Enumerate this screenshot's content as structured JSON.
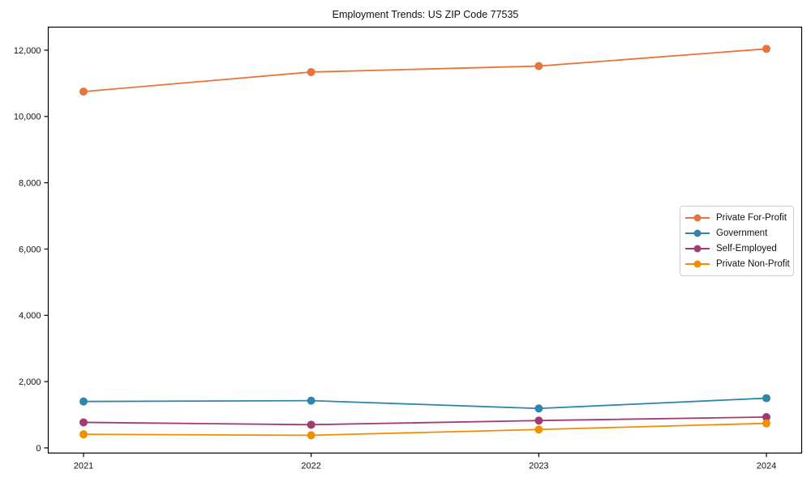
{
  "chart_data": {
    "type": "line",
    "title": "Employment Trends: US ZIP Code 77535",
    "xlabel": "",
    "ylabel": "",
    "categories": [
      2021,
      2022,
      2023,
      2024
    ],
    "series": [
      {
        "name": "Private For-Profit",
        "color": "#E8743B",
        "values": [
          10750,
          11340,
          11520,
          12040
        ]
      },
      {
        "name": "Government",
        "color": "#2E86AB",
        "values": [
          1400,
          1425,
          1190,
          1500
        ]
      },
      {
        "name": "Self-Employed",
        "color": "#A23B72",
        "values": [
          770,
          700,
          825,
          930
        ]
      },
      {
        "name": "Private Non-Profit",
        "color": "#F18F01",
        "values": [
          410,
          380,
          555,
          740
        ]
      }
    ],
    "xlim": [
      2020.845,
      2024.155
    ],
    "ylim": [
      -155,
      12695
    ],
    "yticks": [
      0,
      2000,
      4000,
      6000,
      8000,
      10000,
      12000
    ],
    "ytick_labels": [
      "0",
      "2,000",
      "4,000",
      "6,000",
      "8,000",
      "10,000",
      "12,000"
    ],
    "xtick_labels": [
      "2021",
      "2022",
      "2023",
      "2024"
    ],
    "grid": false,
    "legend_position": "center-right",
    "axis_color": "#000000",
    "background": "#ffffff"
  }
}
